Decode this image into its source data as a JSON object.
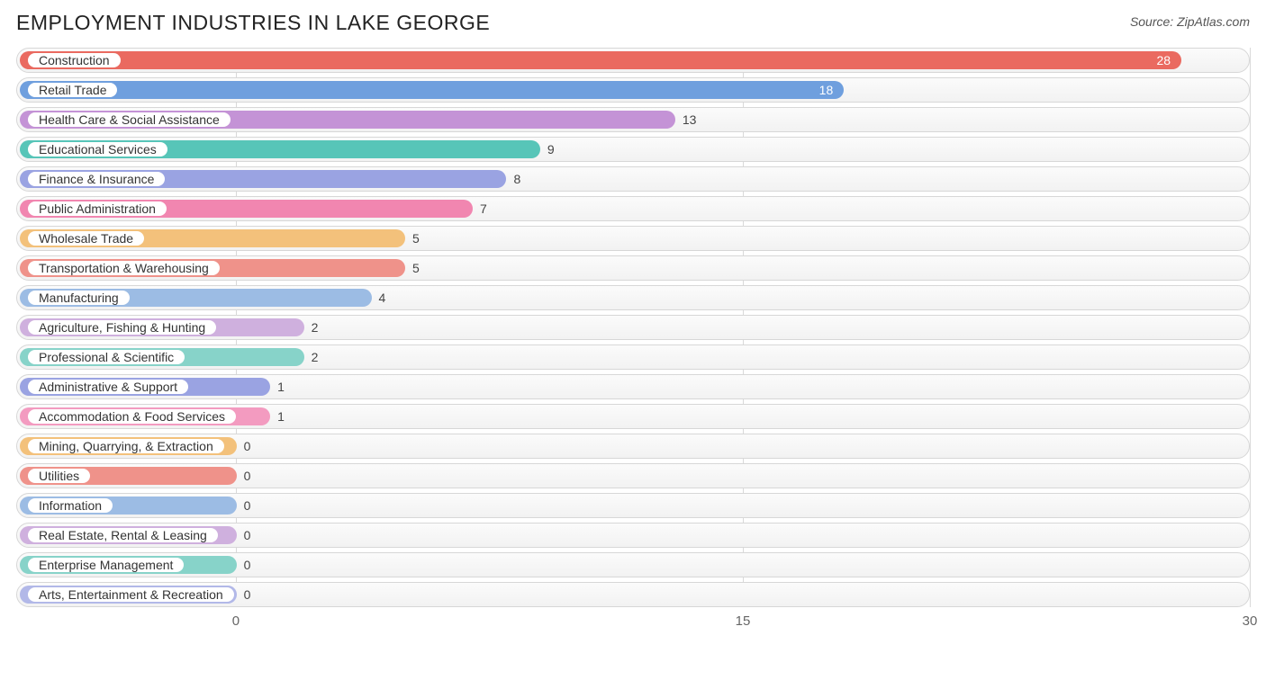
{
  "title": "EMPLOYMENT INDUSTRIES IN LAKE GEORGE",
  "source_label": "Source: ZipAtlas.com",
  "chart": {
    "type": "bar-horizontal",
    "x_min": -6.5,
    "x_max": 30,
    "ticks": [
      0,
      15,
      30
    ],
    "track_bg": "#f4f4f4",
    "track_border": "#d7d7d7",
    "grid_color": "#d9d9d9",
    "background_color": "#ffffff",
    "title_fontsize": 23,
    "label_fontsize": 14,
    "max_value_for_scale": 30,
    "bars": [
      {
        "label": "Construction",
        "value": 28,
        "color": "#ea6a60",
        "value_inside": true
      },
      {
        "label": "Retail Trade",
        "value": 18,
        "color": "#6f9fde",
        "value_inside": true
      },
      {
        "label": "Health Care & Social Assistance",
        "value": 13,
        "color": "#c493d6",
        "value_inside": false
      },
      {
        "label": "Educational Services",
        "value": 9,
        "color": "#57c5b8",
        "value_inside": false
      },
      {
        "label": "Finance & Insurance",
        "value": 8,
        "color": "#9aa3e2",
        "value_inside": false
      },
      {
        "label": "Public Administration",
        "value": 7,
        "color": "#f186b0",
        "value_inside": false
      },
      {
        "label": "Wholesale Trade",
        "value": 5,
        "color": "#f3c17b",
        "value_inside": false
      },
      {
        "label": "Transportation & Warehousing",
        "value": 5,
        "color": "#ef928a",
        "value_inside": false
      },
      {
        "label": "Manufacturing",
        "value": 4,
        "color": "#9cbce4",
        "value_inside": false
      },
      {
        "label": "Agriculture, Fishing & Hunting",
        "value": 2,
        "color": "#cfb0de",
        "value_inside": false
      },
      {
        "label": "Professional & Scientific",
        "value": 2,
        "color": "#87d3c9",
        "value_inside": false
      },
      {
        "label": "Administrative & Support",
        "value": 1,
        "color": "#9aa3e2",
        "value_inside": false
      },
      {
        "label": "Accommodation & Food Services",
        "value": 1,
        "color": "#f39bc0",
        "value_inside": false
      },
      {
        "label": "Mining, Quarrying, & Extraction",
        "value": 0,
        "color": "#f3c17b",
        "value_inside": false
      },
      {
        "label": "Utilities",
        "value": 0,
        "color": "#ef928a",
        "value_inside": false
      },
      {
        "label": "Information",
        "value": 0,
        "color": "#9cbce4",
        "value_inside": false
      },
      {
        "label": "Real Estate, Rental & Leasing",
        "value": 0,
        "color": "#cfb0de",
        "value_inside": false
      },
      {
        "label": "Enterprise Management",
        "value": 0,
        "color": "#87d3c9",
        "value_inside": false
      },
      {
        "label": "Arts, Entertainment & Recreation",
        "value": 0,
        "color": "#b2b8e8",
        "value_inside": false
      }
    ]
  }
}
